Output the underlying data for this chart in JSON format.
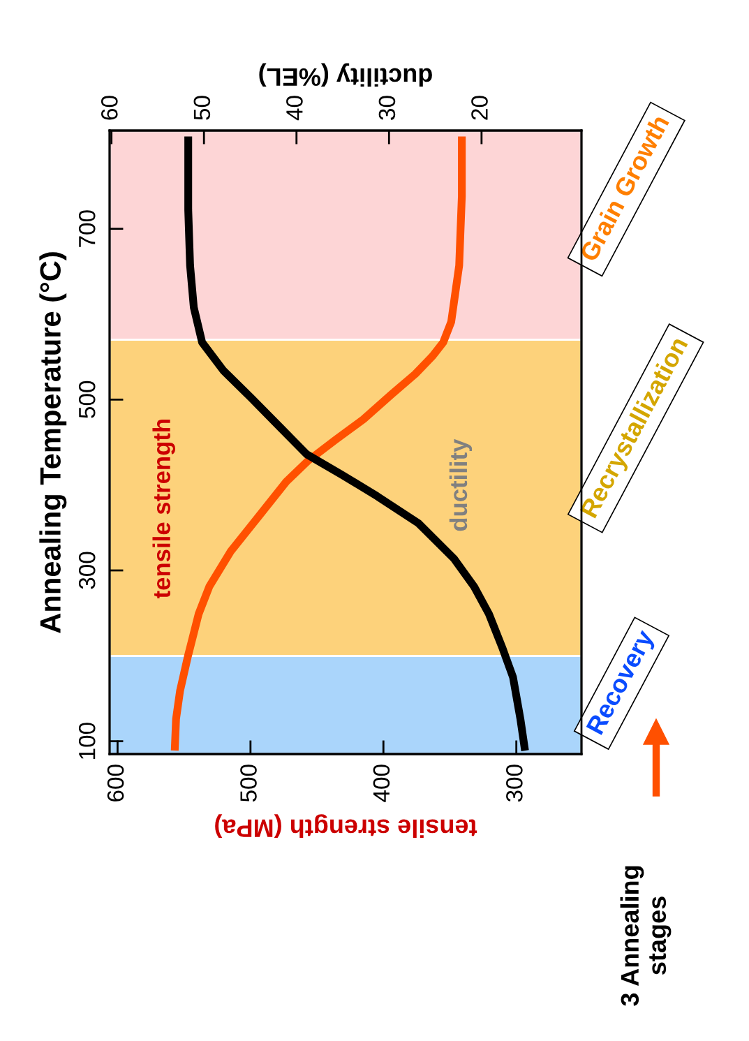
{
  "chart_data": {
    "type": "line",
    "ylabel": "Annealing Temperature (°C)",
    "xlabel": "tensile strength (MPa)",
    "x2label": "ductility (%EL)",
    "ylim": [
      85,
      815
    ],
    "yticks": [
      100,
      300,
      500,
      700
    ],
    "xlim": [
      606,
      251
    ],
    "xticks": [
      600,
      500,
      400,
      300
    ],
    "x2lim": [
      60.2,
      9.2
    ],
    "x2ticks": [
      60,
      50,
      40,
      30,
      20
    ],
    "series": [
      {
        "name": "tensile strength",
        "color": "#ff5000",
        "values": [
          89,
          126,
          159,
          200,
          249,
          281,
          322,
          363,
          404,
          428,
          453,
          477,
          506,
          530,
          551,
          567,
          591,
          624,
          657,
          698,
          738,
          808
        ],
        "x": [
          557,
          556,
          553,
          547,
          539,
          531,
          515,
          494,
          473,
          457,
          436,
          415,
          394,
          376,
          363,
          355,
          349,
          346,
          343,
          342,
          341,
          341
        ]
      },
      {
        "name": "ductility",
        "color": "#000000",
        "axis": "x2",
        "values": [
          89,
          126,
          175,
          208,
          249,
          281,
          314,
          355,
          387,
          412,
          436,
          469,
          502,
          534,
          567,
          608,
          657,
          722,
          808
        ],
        "x": [
          15.3,
          15.8,
          16.6,
          17.7,
          19.2,
          20.8,
          23.0,
          26.8,
          31.3,
          35.1,
          38.9,
          41.9,
          44.9,
          47.9,
          50.2,
          51.1,
          51.5,
          51.7,
          51.7
        ]
      }
    ],
    "bands": [
      {
        "axis": "y",
        "from": 85,
        "to": 200,
        "label": "Recovery",
        "color": "#aad5fb"
      },
      {
        "axis": "y",
        "from": 200,
        "to": 570,
        "label": "Recrystallization",
        "color": "#fdd27b"
      },
      {
        "axis": "y",
        "from": 570,
        "to": 815,
        "label": "Grain Growth",
        "color": "#fdd5d6"
      }
    ],
    "annotations": [
      "3 Annealing stages"
    ],
    "legend": false,
    "grid": false
  }
}
